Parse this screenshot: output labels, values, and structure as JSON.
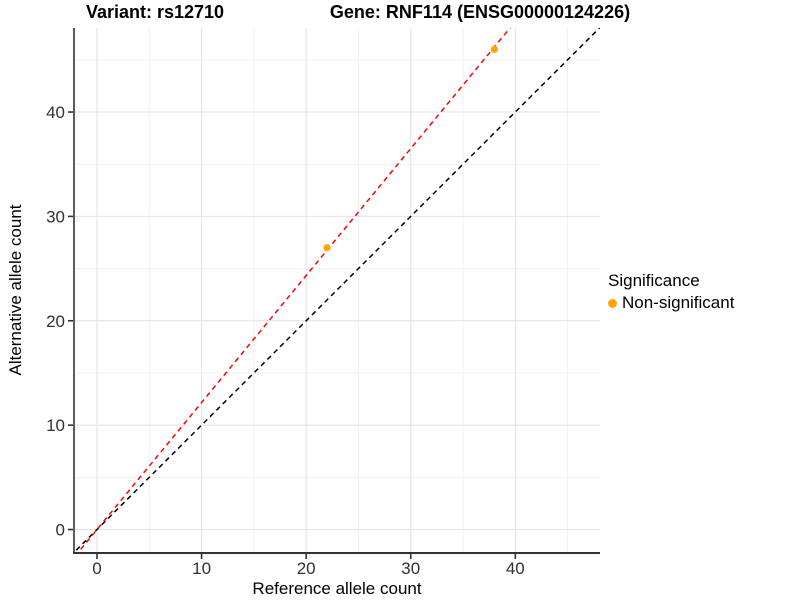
{
  "chart_data": {
    "type": "scatter",
    "title_left": "Variant: rs12710",
    "title_right": "Gene: RNF114 (ENSG00000124226)",
    "xlabel": "Reference allele count",
    "ylabel": "Alternative allele count",
    "xlim": [
      -2.2,
      48.1
    ],
    "ylim": [
      -2.25,
      48.05
    ],
    "x_ticks": [
      0,
      10,
      20,
      30,
      40
    ],
    "x_tick_labels": [
      "0",
      "10",
      "20",
      "30",
      "40"
    ],
    "y_ticks": [
      0,
      10,
      20,
      30,
      40
    ],
    "y_tick_labels": [
      "0",
      "10",
      "20",
      "30",
      "40"
    ],
    "x_minor_ticks": [
      5,
      15,
      25,
      35,
      45
    ],
    "y_minor_ticks": [
      5,
      15,
      25,
      35,
      45
    ],
    "grid": true,
    "points": [
      {
        "x": 22,
        "y": 27,
        "series": "Non-significant"
      },
      {
        "x": 38,
        "y": 46,
        "series": "Non-significant"
      }
    ],
    "point_color": "#FFA500",
    "lines": [
      {
        "name": "identity-line",
        "slope": 1,
        "intercept": 0,
        "color": "#000000",
        "style": "dashed"
      },
      {
        "name": "allelic-ratio-line",
        "slope": 1.2167,
        "intercept": 0,
        "color": "#FF0000",
        "style": "dashed"
      }
    ],
    "legend": {
      "title": "Significance",
      "position": "right",
      "items": [
        {
          "label": "Non-significant",
          "color": "#FFA500"
        }
      ]
    },
    "colors": {
      "point": "#FFA500",
      "ratio_line": "#FF0000",
      "identity_line": "#000000",
      "grid_major": "#E2E2E2",
      "grid_minor": "#F0F0F0",
      "axis_line": "#333333",
      "tick_text": "#303030"
    }
  }
}
